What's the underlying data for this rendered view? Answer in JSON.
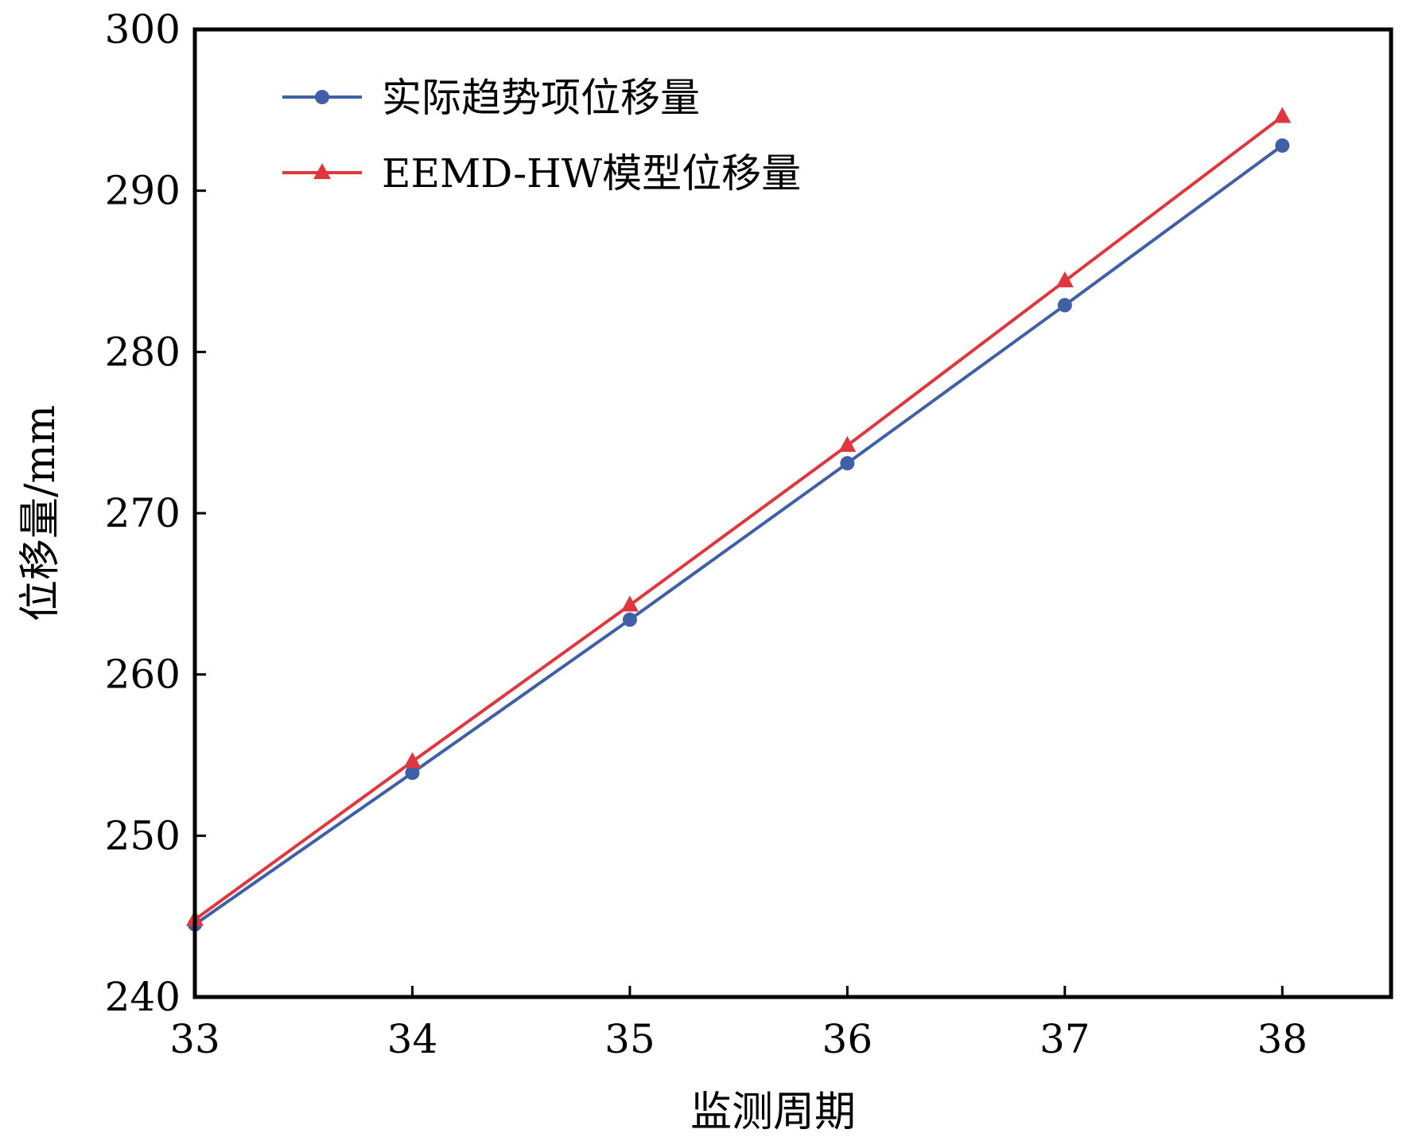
{
  "chart_data": {
    "type": "line",
    "title": "",
    "xlabel": "监测周期",
    "ylabel": "位移量/mm",
    "x": [
      33,
      34,
      35,
      36,
      37,
      38
    ],
    "xlim": [
      33,
      38.5
    ],
    "ylim": [
      240,
      300
    ],
    "xticks": [
      "33",
      "34",
      "35",
      "36",
      "37",
      "38"
    ],
    "yticks": [
      "240",
      "250",
      "260",
      "270",
      "280",
      "290",
      "300"
    ],
    "grid": false,
    "legend_position": "top-left",
    "series": [
      {
        "name": "实际趋势项位移量",
        "color": "#3f5fa6",
        "marker": "circle",
        "values": [
          244.5,
          253.9,
          263.4,
          273.1,
          282.9,
          292.8
        ]
      },
      {
        "name": "EEMD-HW模型位移量",
        "color": "#e0363d",
        "marker": "triangle",
        "values": [
          244.8,
          254.6,
          264.3,
          274.2,
          284.4,
          294.6
        ]
      }
    ]
  }
}
